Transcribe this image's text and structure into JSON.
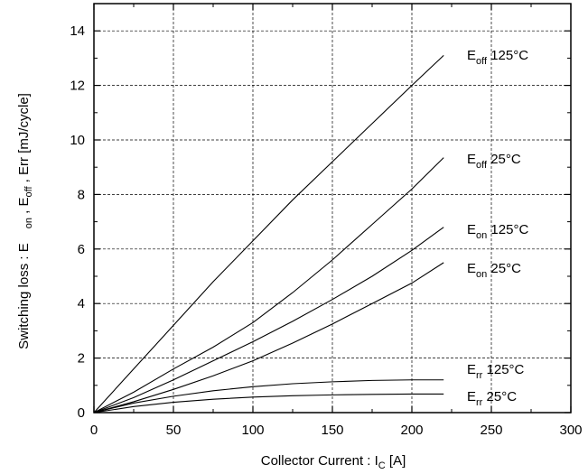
{
  "chart_data": {
    "type": "line",
    "xlabel": {
      "main": "Collector Current : I",
      "sub": "C",
      "unit": " [A]"
    },
    "ylabel": {
      "part1": "Switching loss : E",
      "sub1": "on",
      "part2": " , E",
      "sub2": "off",
      "part3": " , Err [mJ/cycle]"
    },
    "xlim": [
      0,
      300
    ],
    "ylim": [
      0,
      15
    ],
    "xticks": [
      "0",
      "50",
      "100",
      "150",
      "200",
      "250",
      "300"
    ],
    "yticks": [
      "0",
      "2",
      "4",
      "6",
      "8",
      "10",
      "12",
      "14"
    ],
    "grid": true,
    "series": [
      {
        "name": "Eoff 125°C",
        "label": {
          "base": "E",
          "sub": "off",
          "rest": " 125°C"
        },
        "x": [
          0,
          25,
          50,
          75,
          100,
          125,
          150,
          175,
          200,
          220
        ],
        "y": [
          0,
          1.6,
          3.2,
          4.8,
          6.3,
          7.8,
          9.2,
          10.6,
          12.0,
          13.1
        ]
      },
      {
        "name": "Eoff 25°C",
        "label": {
          "base": "E",
          "sub": "off",
          "rest": " 25°C"
        },
        "x": [
          0,
          25,
          50,
          75,
          100,
          125,
          150,
          175,
          200,
          220
        ],
        "y": [
          0,
          0.75,
          1.6,
          2.4,
          3.3,
          4.4,
          5.6,
          6.9,
          8.2,
          9.35
        ]
      },
      {
        "name": "Eon 125°C",
        "label": {
          "base": "E",
          "sub": "on",
          "rest": " 125°C"
        },
        "x": [
          0,
          25,
          50,
          75,
          100,
          125,
          150,
          175,
          200,
          220
        ],
        "y": [
          0,
          0.55,
          1.2,
          1.9,
          2.6,
          3.35,
          4.15,
          5.0,
          5.95,
          6.8
        ]
      },
      {
        "name": "Eon 25°C",
        "label": {
          "base": "E",
          "sub": "on",
          "rest": " 25°C"
        },
        "x": [
          0,
          25,
          50,
          75,
          100,
          125,
          150,
          175,
          200,
          220
        ],
        "y": [
          0,
          0.4,
          0.85,
          1.35,
          1.9,
          2.55,
          3.25,
          4.0,
          4.75,
          5.5
        ]
      },
      {
        "name": "Err 125°C",
        "label": {
          "base": "E",
          "sub": "rr",
          "rest": " 125°C"
        },
        "x": [
          0,
          25,
          50,
          75,
          100,
          125,
          150,
          175,
          200,
          220
        ],
        "y": [
          0,
          0.35,
          0.6,
          0.8,
          0.95,
          1.06,
          1.13,
          1.18,
          1.2,
          1.2
        ]
      },
      {
        "name": "Err 25°C",
        "label": {
          "base": "E",
          "sub": "rr",
          "rest": " 25°C"
        },
        "x": [
          0,
          25,
          50,
          75,
          100,
          125,
          150,
          175,
          200,
          220
        ],
        "y": [
          0,
          0.22,
          0.38,
          0.49,
          0.57,
          0.62,
          0.65,
          0.67,
          0.68,
          0.68
        ]
      }
    ]
  }
}
